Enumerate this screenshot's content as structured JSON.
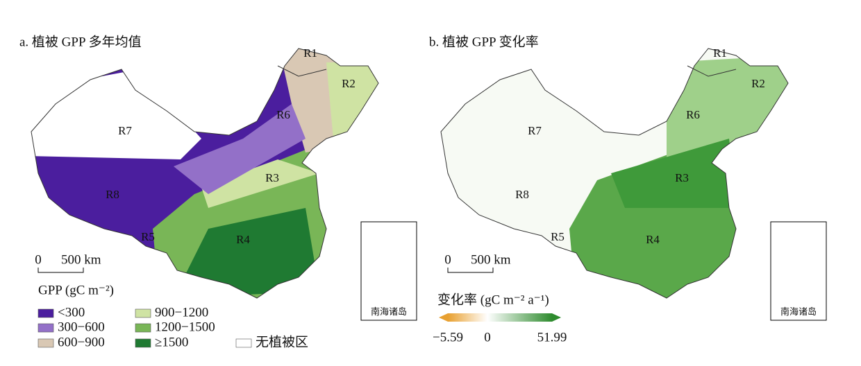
{
  "panels": [
    {
      "title": "a. 植被 GPP 多年均值",
      "regions": [
        "R1",
        "R2",
        "R6",
        "R7",
        "R3",
        "R8",
        "R5",
        "R4"
      ],
      "scale": {
        "zero": "0",
        "label": "500 km"
      },
      "legend": {
        "title": "GPP (gC m⁻²)",
        "items": [
          {
            "label": "<300",
            "color": "#4b1e9e"
          },
          {
            "label": "300−600",
            "color": "#9370c8"
          },
          {
            "label": "600−900",
            "color": "#d9c8b4"
          },
          {
            "label": "900−1200",
            "color": "#cfe3a3"
          },
          {
            "label": "1200−1500",
            "color": "#79b657"
          },
          {
            "label": "≥1500",
            "color": "#1f7a32"
          },
          {
            "label": "无植被区",
            "color": "#ffffff"
          }
        ]
      },
      "inset_label": "南海诸岛"
    },
    {
      "title": "b. 植被 GPP 变化率",
      "regions": [
        "R1",
        "R2",
        "R6",
        "R7",
        "R3",
        "R8",
        "R5",
        "R4"
      ],
      "scale": {
        "zero": "0",
        "label": "500 km"
      },
      "legend": {
        "title": "变化率 (gC m⁻² a⁻¹)",
        "ticks": [
          {
            "value": -5.59,
            "label": "−5.59"
          },
          0,
          51.99
        ],
        "colors": [
          "#e8a030",
          "#ffffff",
          "#2e8b2e"
        ]
      },
      "inset_label": "南海诸岛"
    }
  ]
}
